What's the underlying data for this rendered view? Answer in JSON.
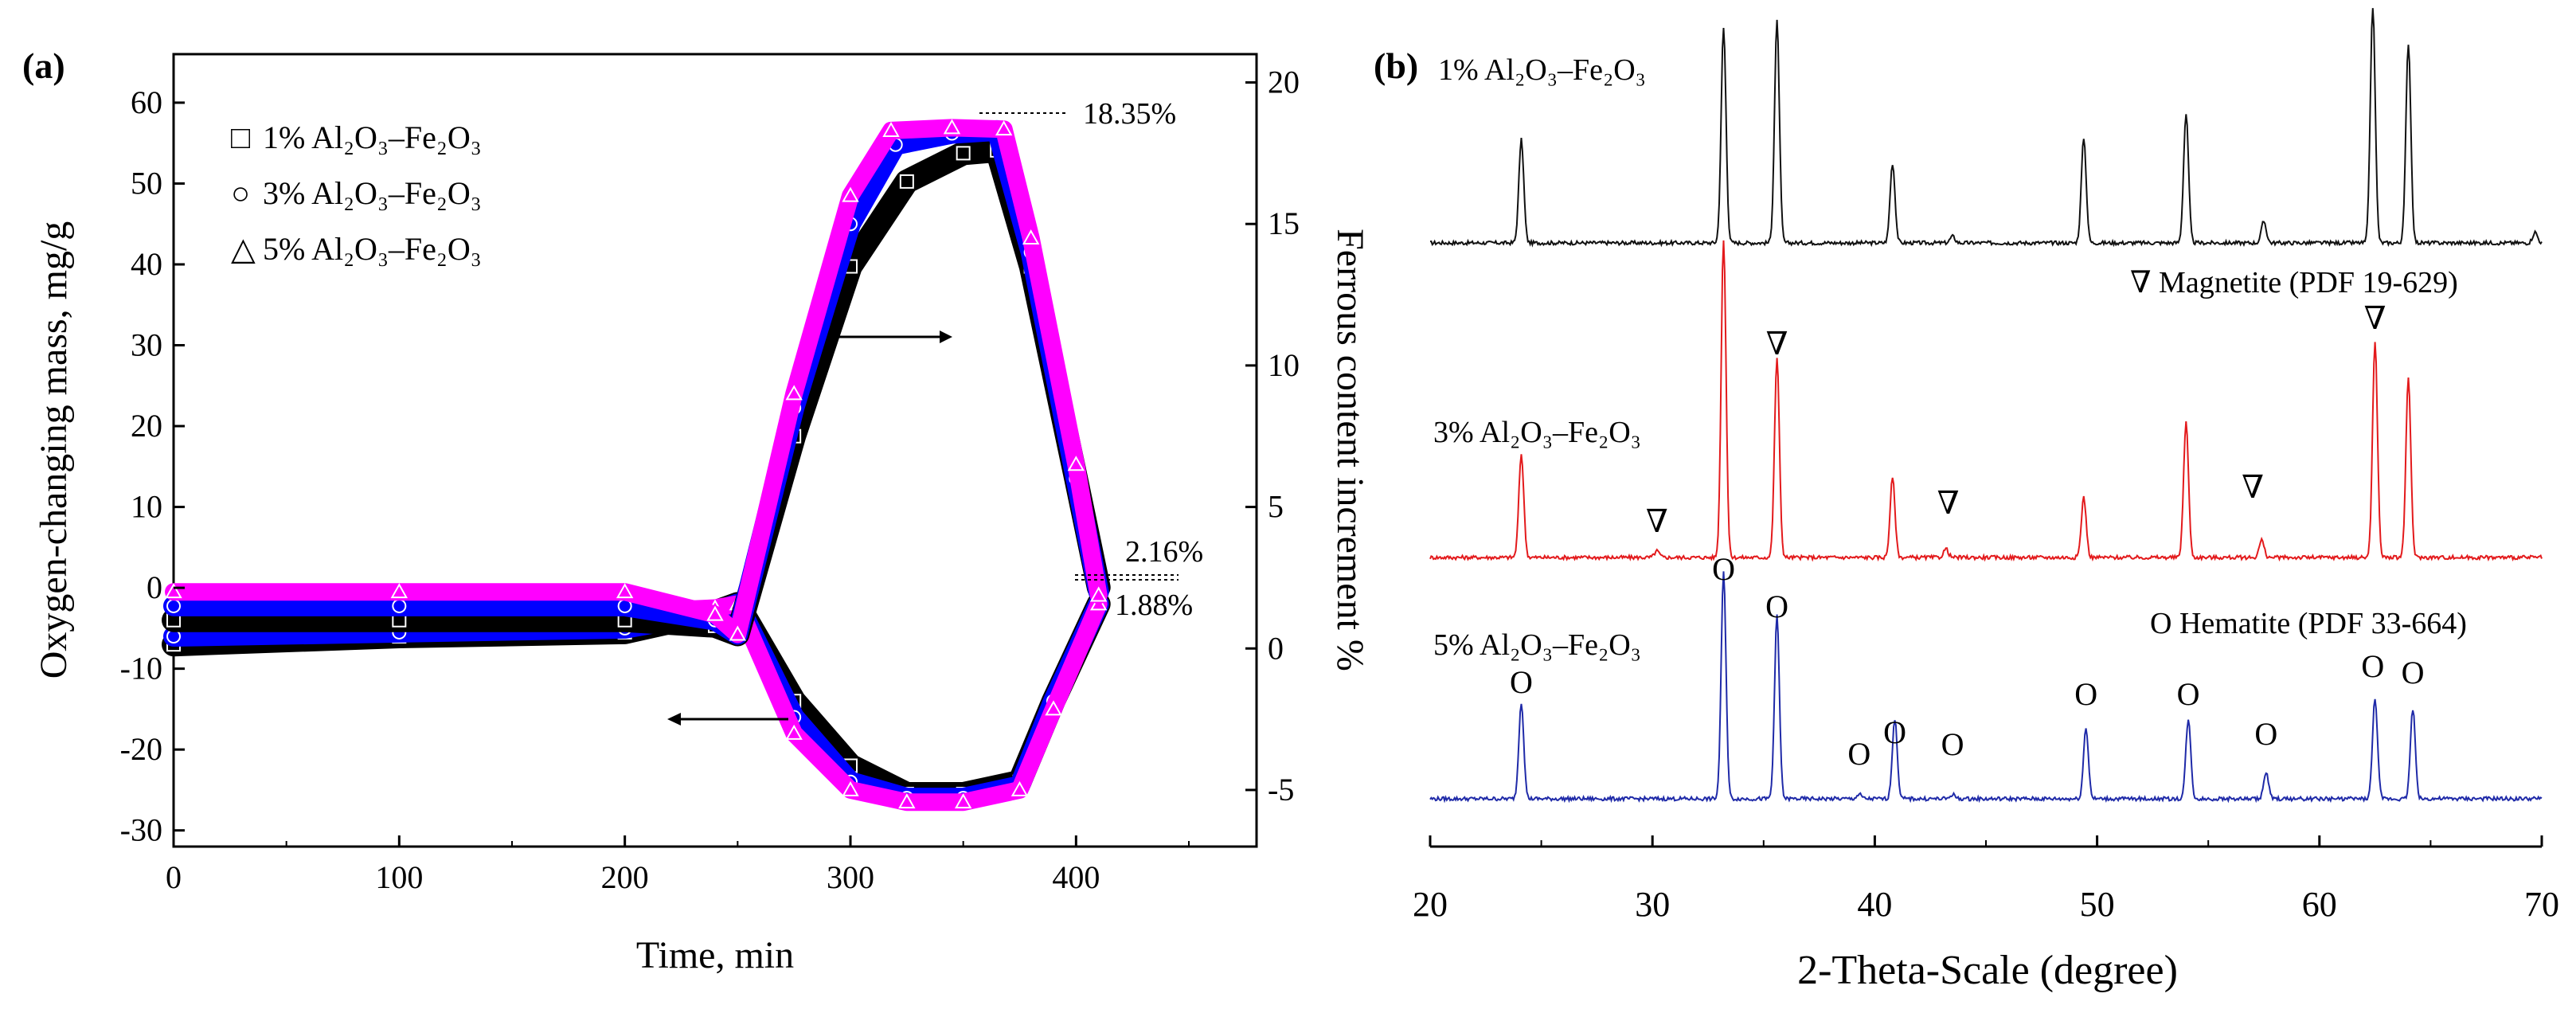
{
  "figure": {
    "colors": {
      "black": "#000000",
      "blue": "#0000ff",
      "magenta": "#ff00ff",
      "red": "#e31a1c",
      "navy": "#1f2aa8",
      "dark": "#111111"
    }
  },
  "chart_data": [
    {
      "panel_label": "(a)",
      "type": "line",
      "xlabel": "Time, min",
      "ylabel": "Oxygen-changing mass, mg/g",
      "y2label": "Ferrous content increment  %",
      "xlim": [
        0,
        480
      ],
      "ylim": [
        -32,
        66
      ],
      "y2lim": [
        -7.0,
        21.0
      ],
      "x_ticks": [
        "0",
        "100",
        "200",
        "300",
        "400"
      ],
      "y_ticks": [
        "60",
        "50",
        "40",
        "30",
        "20",
        "10",
        "0",
        "-10",
        "-20",
        "-30"
      ],
      "y2_ticks": [
        "20",
        "15",
        "10",
        "5",
        "0",
        "-5"
      ],
      "legend": [
        {
          "marker": "□",
          "text": "1% Al₂O₃–Fe₂O₃",
          "color": "#000000"
        },
        {
          "marker": "○",
          "text": "3% Al₂O₃–Fe₂O₃",
          "color": "#0000ff"
        },
        {
          "marker": "△",
          "text": "5% Al₂O₃–Fe₂O₃",
          "color": "#ff00ff"
        }
      ],
      "annotations": [
        "18.35%",
        "2.16%",
        "1.88%"
      ],
      "series": [
        {
          "name": "1% Al2O3–Fe2O3 ferrous content (right axis)",
          "color": "#000000",
          "axis": "right",
          "x": [
            0,
            100,
            200,
            240,
            250,
            275,
            300,
            325,
            350,
            365,
            380,
            400,
            410
          ],
          "y": [
            1.0,
            1.0,
            1.0,
            0.8,
            0.5,
            7.5,
            13.5,
            16.5,
            17.5,
            17.6,
            13.5,
            6.0,
            2.16
          ]
        },
        {
          "name": "3% Al2O3–Fe2O3 ferrous content (right axis)",
          "color": "#0000ff",
          "axis": "right",
          "x": [
            0,
            100,
            200,
            240,
            250,
            275,
            300,
            320,
            345,
            365,
            380,
            400,
            410
          ],
          "y": [
            1.5,
            1.5,
            1.5,
            1.0,
            0.5,
            8.5,
            15.0,
            17.8,
            18.2,
            18.3,
            14.0,
            6.0,
            2.0
          ]
        },
        {
          "name": "5% Al2O3–Fe2O3 ferrous content (right axis)",
          "color": "#ff00ff",
          "axis": "right",
          "x": [
            0,
            100,
            200,
            240,
            250,
            275,
            300,
            318,
            345,
            368,
            380,
            400,
            410
          ],
          "y": [
            2.0,
            2.0,
            2.0,
            1.2,
            0.5,
            9.0,
            16.0,
            18.3,
            18.4,
            18.35,
            14.5,
            6.5,
            1.88
          ]
        },
        {
          "name": "1% Al2O3–Fe2O3 oxygen-changing mass (left axis)",
          "color": "#000000",
          "axis": "left",
          "x": [
            0,
            100,
            200,
            240,
            250,
            275,
            300,
            325,
            350,
            375,
            390,
            410
          ],
          "y": [
            -7,
            -6,
            -5.5,
            -3,
            -2,
            -14,
            -22,
            -25.5,
            -25.5,
            -24,
            -14,
            -2
          ]
        },
        {
          "name": "3% Al2O3–Fe2O3 oxygen-changing mass (left axis)",
          "color": "#0000ff",
          "axis": "left",
          "x": [
            0,
            100,
            200,
            240,
            250,
            275,
            300,
            325,
            350,
            375,
            390,
            410
          ],
          "y": [
            -6,
            -5.5,
            -5,
            -3,
            -2,
            -16,
            -24,
            -26,
            -26,
            -24.5,
            -14,
            -2
          ]
        },
        {
          "name": "5% Al2O3–Fe2O3 oxygen-changing mass (left axis)",
          "color": "#ff00ff",
          "axis": "left",
          "x": [
            0,
            100,
            200,
            240,
            250,
            275,
            300,
            325,
            350,
            375,
            390,
            410
          ],
          "y": [
            -4,
            -3.5,
            -3,
            -2.5,
            -2,
            -18,
            -25,
            -26.5,
            -26.5,
            -25,
            -15,
            -2
          ]
        }
      ]
    },
    {
      "panel_label": "(b)",
      "type": "line",
      "xlabel": "2-Theta-Scale (degree)",
      "xlim": [
        20,
        70
      ],
      "x_ticks": [
        "20",
        "30",
        "40",
        "50",
        "60",
        "70"
      ],
      "legend_notes": [
        "∇ Magnetite (PDF 19-629)",
        "O Hematite (PDF 33-664)"
      ],
      "series": [
        {
          "name": "1% Al₂O₃–Fe₂O₃",
          "color": "#111111",
          "peaks": [
            {
              "two_theta": 24.1,
              "intensity": 0.48
            },
            {
              "two_theta": 33.2,
              "intensity": 1.0
            },
            {
              "two_theta": 35.6,
              "intensity": 1.03
            },
            {
              "two_theta": 40.8,
              "intensity": 0.37
            },
            {
              "two_theta": 43.5,
              "intensity": 0.03
            },
            {
              "two_theta": 49.4,
              "intensity": 0.49
            },
            {
              "two_theta": 54.0,
              "intensity": 0.6
            },
            {
              "two_theta": 57.5,
              "intensity": 0.1
            },
            {
              "two_theta": 62.4,
              "intensity": 1.1
            },
            {
              "two_theta": 64.0,
              "intensity": 0.93
            },
            {
              "two_theta": 69.7,
              "intensity": 0.05
            }
          ]
        },
        {
          "name": "3% Al₂O₃–Fe₂O₃",
          "color": "#e31a1c",
          "peaks": [
            {
              "two_theta": 24.1,
              "intensity": 0.48
            },
            {
              "two_theta": 30.2,
              "intensity": 0.03
            },
            {
              "two_theta": 33.2,
              "intensity": 1.48
            },
            {
              "two_theta": 35.6,
              "intensity": 0.93
            },
            {
              "two_theta": 40.8,
              "intensity": 0.37
            },
            {
              "two_theta": 43.2,
              "intensity": 0.04
            },
            {
              "two_theta": 49.4,
              "intensity": 0.28
            },
            {
              "two_theta": 54.0,
              "intensity": 0.63
            },
            {
              "two_theta": 57.4,
              "intensity": 0.08
            },
            {
              "two_theta": 62.5,
              "intensity": 1.0
            },
            {
              "two_theta": 64.0,
              "intensity": 0.83
            }
          ]
        },
        {
          "name": "5% Al₂O₃–Fe₂O₃",
          "color": "#1f2aa8",
          "peaks": [
            {
              "two_theta": 24.1,
              "intensity": 0.45
            },
            {
              "two_theta": 33.2,
              "intensity": 1.05
            },
            {
              "two_theta": 35.6,
              "intensity": 0.85
            },
            {
              "two_theta": 39.3,
              "intensity": 0.02
            },
            {
              "two_theta": 40.9,
              "intensity": 0.37
            },
            {
              "two_theta": 43.5,
              "intensity": 0.02
            },
            {
              "two_theta": 49.5,
              "intensity": 0.33
            },
            {
              "two_theta": 54.1,
              "intensity": 0.37
            },
            {
              "two_theta": 57.6,
              "intensity": 0.12
            },
            {
              "two_theta": 62.5,
              "intensity": 0.47
            },
            {
              "two_theta": 64.2,
              "intensity": 0.42
            }
          ]
        }
      ],
      "magnetite_markers": [
        {
          "symbol": "∇",
          "two_theta": 30.2
        },
        {
          "symbol": "∇",
          "two_theta": 35.6
        },
        {
          "symbol": "∇",
          "two_theta": 43.3
        },
        {
          "symbol": "∇",
          "two_theta": 57.0
        },
        {
          "symbol": "∇",
          "two_theta": 62.5
        }
      ],
      "hematite_markers": [
        {
          "symbol": "O",
          "two_theta": 24.1
        },
        {
          "symbol": "O",
          "two_theta": 33.2
        },
        {
          "symbol": "O",
          "two_theta": 35.6
        },
        {
          "symbol": "O",
          "two_theta": 39.3
        },
        {
          "symbol": "O",
          "two_theta": 40.9
        },
        {
          "symbol": "O",
          "two_theta": 43.5
        },
        {
          "symbol": "O",
          "two_theta": 49.5
        },
        {
          "symbol": "O",
          "two_theta": 54.1
        },
        {
          "symbol": "O",
          "two_theta": 57.6
        },
        {
          "symbol": "O",
          "two_theta": 62.4
        },
        {
          "symbol": "O",
          "two_theta": 64.2
        }
      ]
    }
  ]
}
